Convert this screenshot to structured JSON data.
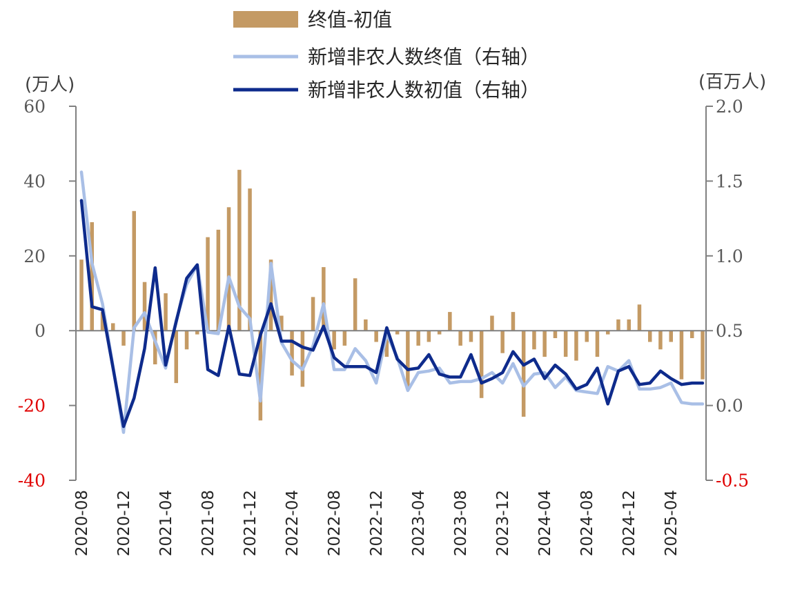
{
  "chart_data": {
    "type": "bar+line",
    "left_axis": {
      "unit": "(万人)",
      "ylim": [
        -40,
        60
      ],
      "ticks": [
        60,
        40,
        20,
        0,
        -20,
        -40
      ]
    },
    "right_axis": {
      "unit": "(百万人)",
      "ylim": [
        -0.5,
        2.0
      ],
      "ticks": [
        "2.0",
        "1.5",
        "1.0",
        "0.5",
        "0.0",
        "-0.5"
      ]
    },
    "x_tick_labels": [
      "2020-08",
      "2020-12",
      "2021-04",
      "2021-08",
      "2021-12",
      "2022-04",
      "2022-08",
      "2022-12",
      "2023-04",
      "2023-08",
      "2023-12",
      "2024-04",
      "2024-08",
      "2024-12",
      "2025-04"
    ],
    "x_tick_every": 4,
    "months": [
      "2020-08",
      "2020-09",
      "2020-10",
      "2020-11",
      "2020-12",
      "2021-01",
      "2021-02",
      "2021-03",
      "2021-04",
      "2021-05",
      "2021-06",
      "2021-07",
      "2021-08",
      "2021-09",
      "2021-10",
      "2021-11",
      "2021-12",
      "2022-01",
      "2022-02",
      "2022-03",
      "2022-04",
      "2022-05",
      "2022-06",
      "2022-07",
      "2022-08",
      "2022-09",
      "2022-10",
      "2022-11",
      "2022-12",
      "2023-01",
      "2023-02",
      "2023-03",
      "2023-04",
      "2023-05",
      "2023-06",
      "2023-07",
      "2023-08",
      "2023-09",
      "2023-10",
      "2023-11",
      "2023-12",
      "2024-01",
      "2024-02",
      "2024-03",
      "2024-04",
      "2024-05",
      "2024-06",
      "2024-07",
      "2024-08",
      "2024-09",
      "2024-10",
      "2024-11",
      "2024-12",
      "2025-01",
      "2025-02",
      "2025-03",
      "2025-04",
      "2025-05",
      "2025-06",
      "2025-07"
    ],
    "series": [
      {
        "name": "终值-初值",
        "type": "bar",
        "axis": "left",
        "color": "#c49a64",
        "values": [
          19,
          29,
          5,
          2,
          -4,
          32,
          13,
          -9,
          10,
          -14,
          -5,
          -1,
          25,
          27,
          33,
          43,
          38,
          -24,
          19,
          4,
          -12,
          -15,
          9,
          17,
          -5,
          -4,
          14,
          3,
          -3,
          -7,
          -1,
          -15,
          -4,
          -3,
          -1,
          5,
          -4,
          -3,
          -18,
          4,
          -6,
          5,
          -23,
          -5,
          -7,
          -2,
          -7,
          -8,
          -3,
          -7,
          -1,
          3,
          3,
          7,
          -3,
          -5,
          -3,
          -13,
          -2,
          -13
        ]
      },
      {
        "name": "新增非农人数终值（右轴）",
        "type": "line",
        "axis": "right",
        "color": "#a9bfe6",
        "values": [
          1.56,
          0.95,
          0.68,
          0.26,
          -0.18,
          0.52,
          0.62,
          0.43,
          0.25,
          0.57,
          0.81,
          0.94,
          0.49,
          0.48,
          0.86,
          0.66,
          0.58,
          0.03,
          0.95,
          0.42,
          0.3,
          0.24,
          0.4,
          0.68,
          0.24,
          0.24,
          0.38,
          0.3,
          0.15,
          0.48,
          0.32,
          0.1,
          0.22,
          0.23,
          0.25,
          0.15,
          0.16,
          0.16,
          0.18,
          0.22,
          0.15,
          0.28,
          0.13,
          0.21,
          0.22,
          0.12,
          0.19,
          0.1,
          0.09,
          0.08,
          0.26,
          0.23,
          0.3,
          0.11,
          0.11,
          0.12,
          0.15,
          0.02,
          0.01,
          0.01
        ]
      },
      {
        "name": "新增非农人数初值（右轴）",
        "type": "line",
        "axis": "right",
        "color": "#0e2b8c",
        "values": [
          1.37,
          0.66,
          0.64,
          0.25,
          -0.14,
          0.05,
          0.38,
          0.92,
          0.27,
          0.56,
          0.85,
          0.94,
          0.24,
          0.2,
          0.53,
          0.21,
          0.2,
          0.47,
          0.68,
          0.43,
          0.43,
          0.39,
          0.37,
          0.53,
          0.32,
          0.26,
          0.26,
          0.26,
          0.22,
          0.52,
          0.31,
          0.24,
          0.25,
          0.34,
          0.21,
          0.19,
          0.19,
          0.34,
          0.15,
          0.18,
          0.22,
          0.36,
          0.27,
          0.31,
          0.18,
          0.27,
          0.21,
          0.11,
          0.14,
          0.25,
          0.01,
          0.23,
          0.26,
          0.14,
          0.15,
          0.23,
          0.18,
          0.14,
          0.15,
          0.15
        ]
      }
    ],
    "legend_position": "top-center",
    "grid": false
  }
}
